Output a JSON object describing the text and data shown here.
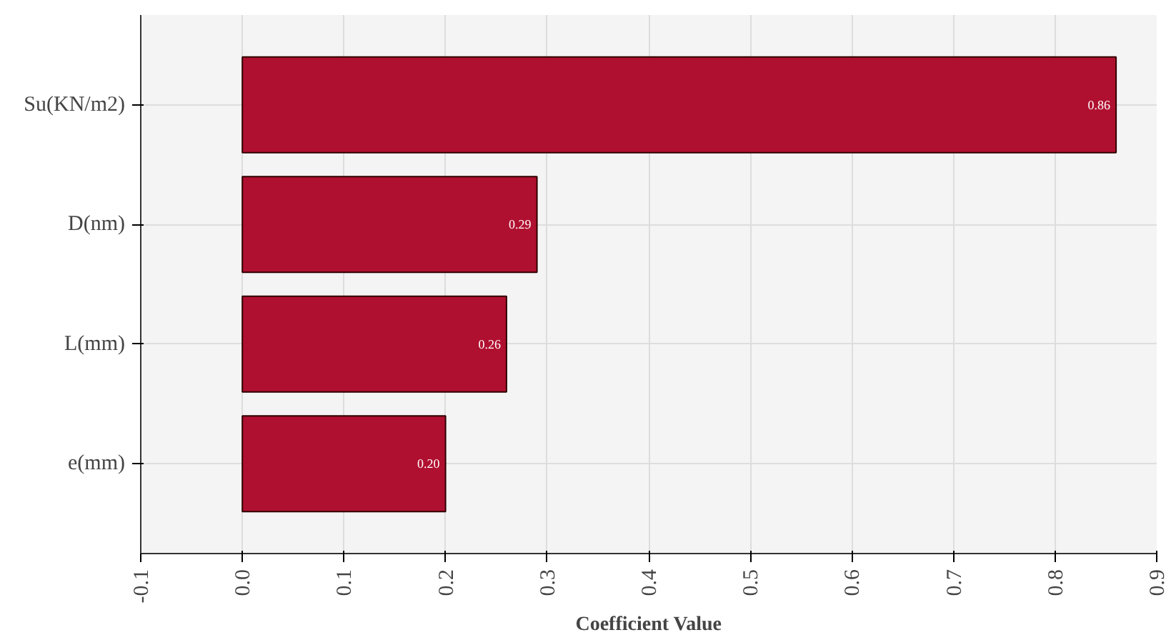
{
  "chart_data": {
    "type": "bar",
    "orientation": "horizontal",
    "xlabel": "Coefficient Value",
    "categories": [
      "Su(KN/m2)",
      "D(nm)",
      "L(mm)",
      "e(mm)"
    ],
    "values": [
      0.86,
      0.29,
      0.26,
      0.2
    ],
    "color": "#b01030",
    "value_labels": [
      "0.86",
      "0.29",
      "0.26",
      "0.20"
    ],
    "xlim": [
      -0.1,
      0.9
    ],
    "xticks": [
      "-0.1",
      "0.0",
      "0.1",
      "0.2",
      "0.3",
      "0.4",
      "0.5",
      "0.6",
      "0.7",
      "0.8",
      "0.9"
    ],
    "grid": true
  }
}
